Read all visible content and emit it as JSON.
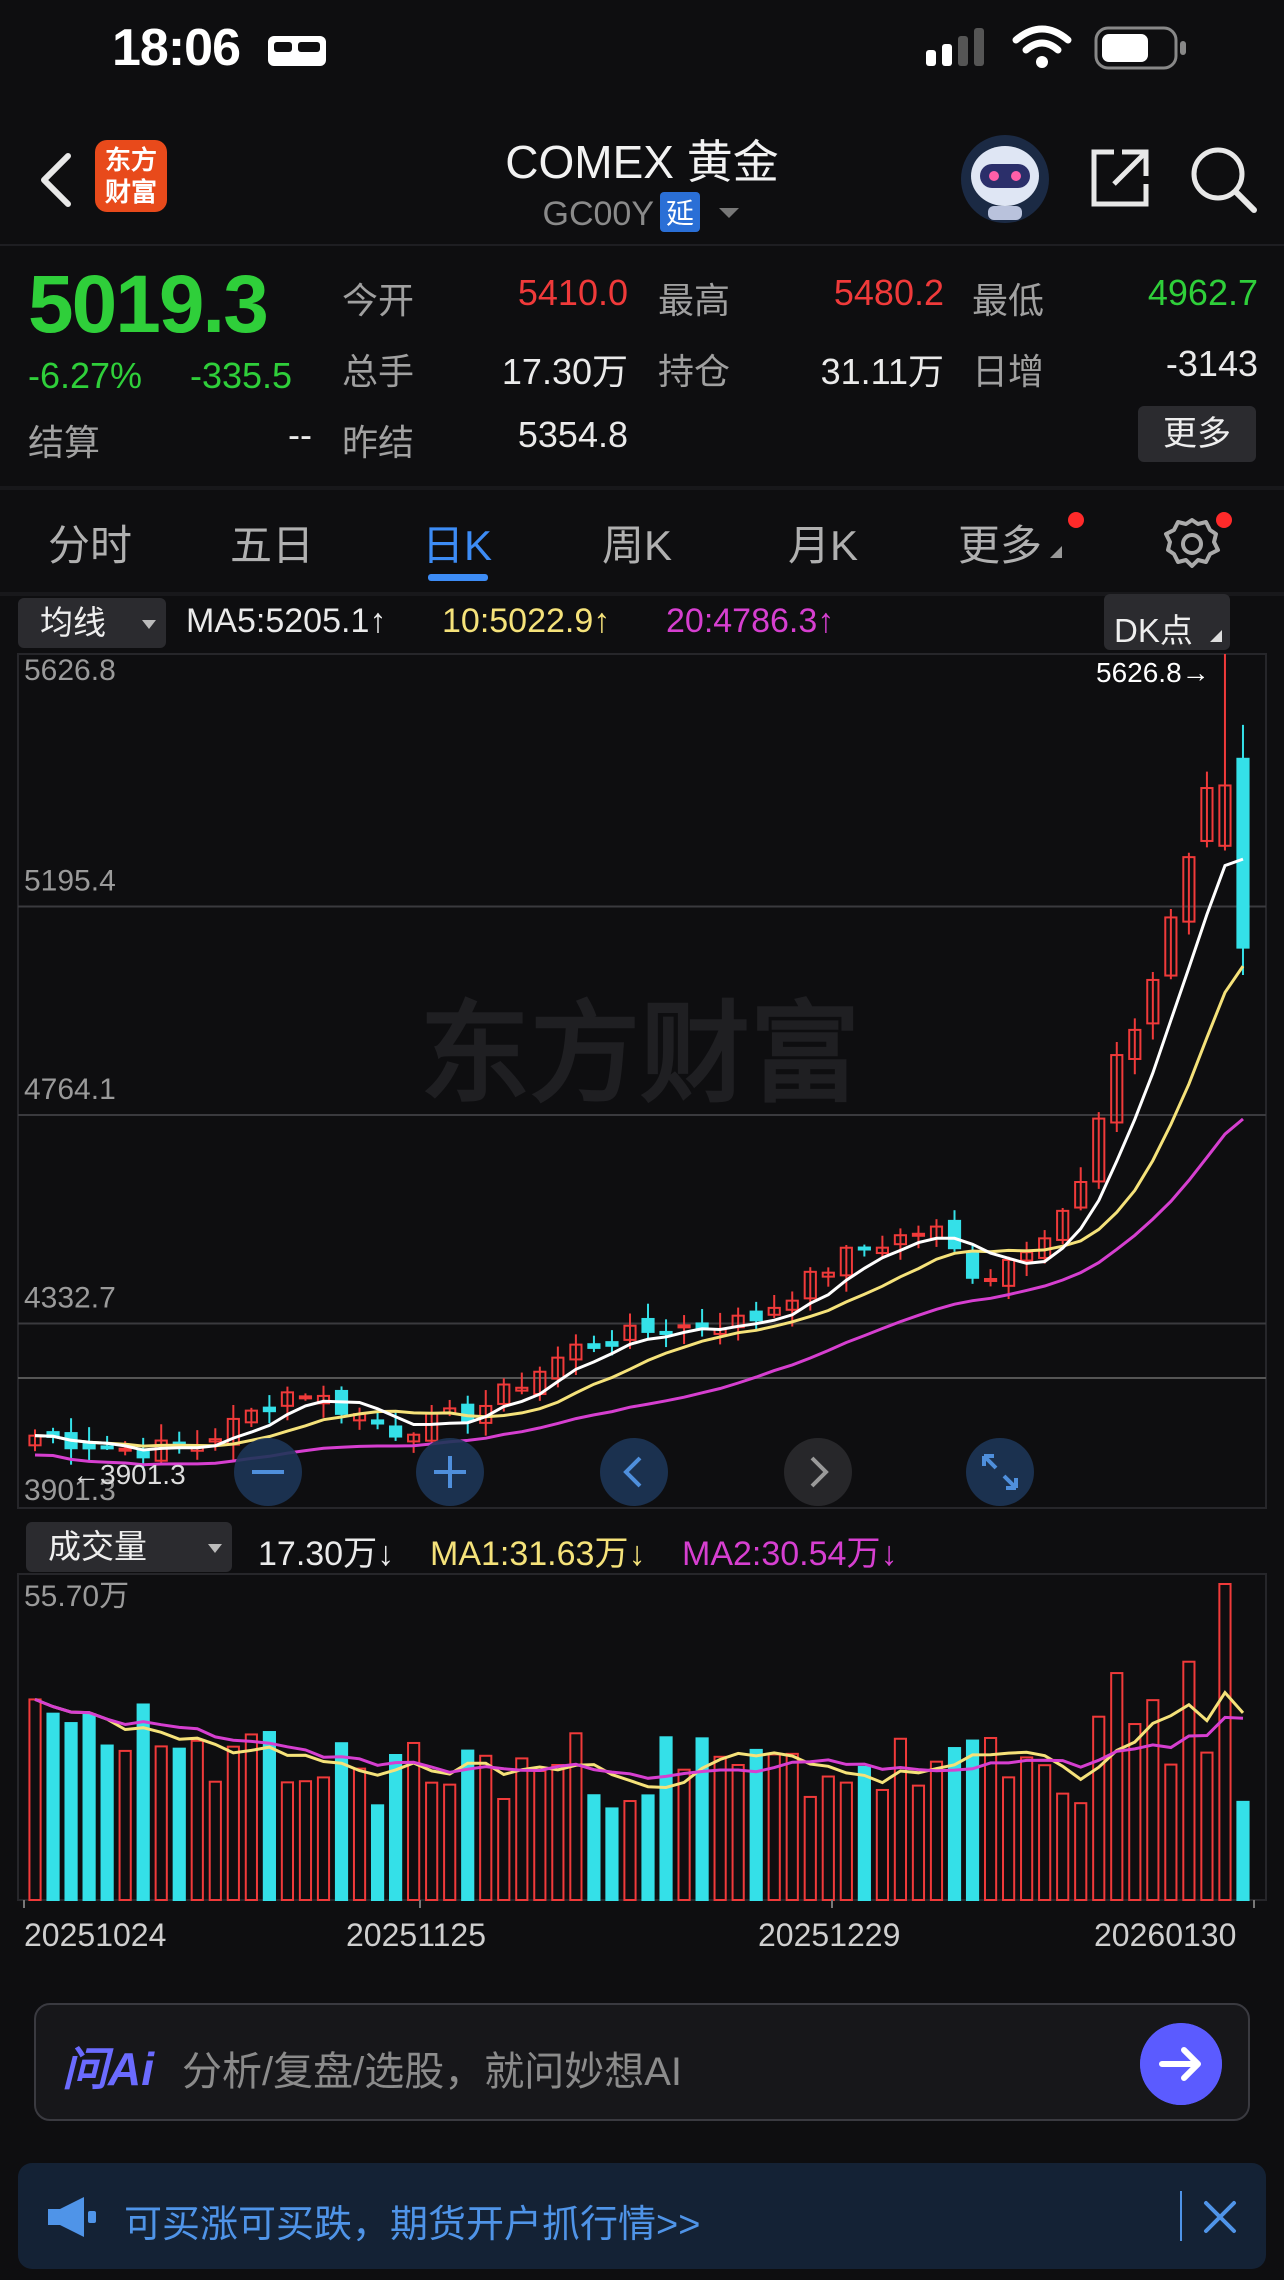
{
  "status": {
    "time": "18:06"
  },
  "header": {
    "title": "COMEX 黄金",
    "code": "GC00Y",
    "delay_tag": "延",
    "logo_text_1": "东方",
    "logo_text_2": "财富"
  },
  "quote": {
    "price": "5019.3",
    "change_pct": "-6.27%",
    "change": "-335.5",
    "settle_label": "结算",
    "settle_value": "--",
    "open_label": "今开",
    "open_value": "5410.0",
    "high_label": "最高",
    "high_value": "5480.2",
    "low_label": "最低",
    "low_value": "4962.7",
    "volume_label": "总手",
    "volume_value": "17.30万",
    "oi_label": "持仓",
    "oi_value": "31.11万",
    "daily_inc_label": "日增",
    "daily_inc_value": "-3143",
    "prev_settle_label": "昨结",
    "prev_settle_value": "5354.8",
    "more_label": "更多"
  },
  "tabs": [
    "分时",
    "五日",
    "日K",
    "周K",
    "月K",
    "更多"
  ],
  "active_tab": "日K",
  "kline_legend": {
    "dropdown": "均线",
    "ma5": "MA5:5205.1↑",
    "ma10": "10:5022.9↑",
    "ma20": "20:4786.3↑",
    "dk_label": "DK点"
  },
  "volume_legend": {
    "dropdown": "成交量",
    "vol": "17.30万↓",
    "ma1": "MA1:31.63万↓",
    "ma2": "MA2:30.54万↓"
  },
  "watermark": "东方财富",
  "chart_data": {
    "type": "candlestick",
    "y_ticks": [
      "5626.8",
      "5195.4",
      "4764.1",
      "4332.7",
      "3901.3"
    ],
    "ylim": [
      3901.3,
      5626.8
    ],
    "max_annotation": "5626.8→",
    "min_annotation": "←3901.3",
    "x_ticks": [
      "20251024",
      "20251125",
      "20251229",
      "20260130"
    ],
    "volume_max_label": "55.70万",
    "volume_ylim": [
      0,
      55.7
    ],
    "colors": {
      "up": "#f03a3a",
      "down": "#34e0e8",
      "ma5": "#ffffff",
      "ma10": "#f5e27a",
      "ma20": "#d63fd0"
    }
  },
  "askbar": {
    "logo": "问Ai",
    "placeholder": "分析/复盘/选股，就问妙想AI"
  },
  "ad": {
    "text": "可买涨可买跌，期货开户抓行情>>"
  }
}
